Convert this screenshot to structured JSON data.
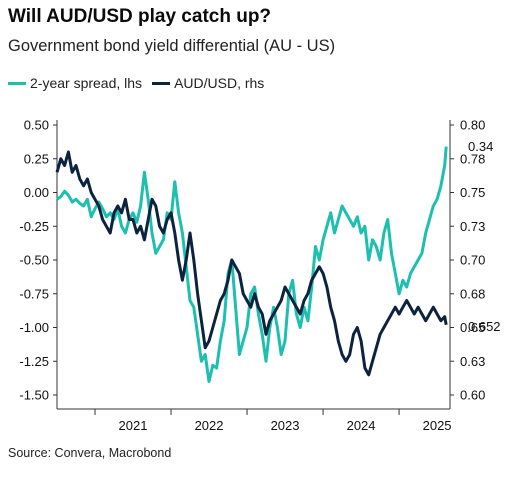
{
  "title": "Will AUD/USD play catch up?",
  "subtitle": "Government bond yield differential (AU - US)",
  "source": "Source: Convera, Macrobond",
  "colors": {
    "spread": "#1dbfaf",
    "audusd": "#0c2340",
    "axis": "#333333"
  },
  "chart_data": {
    "type": "line",
    "legend": [
      "2-year spread, lhs",
      "AUD/USD, rhs"
    ],
    "x_ticks": [
      "2021",
      "2022",
      "2023",
      "2024",
      "2025"
    ],
    "x_range": [
      2020.5,
      2025.67
    ],
    "y_left": {
      "ticks": [
        "0.50",
        "0.25",
        "0.00",
        "-0.25",
        "-0.50",
        "-0.75",
        "-1.00",
        "-1.25",
        "-1.50"
      ],
      "range": [
        -1.5,
        0.5
      ]
    },
    "y_right": {
      "ticks": [
        "0.80",
        "0.78",
        "0.75",
        "0.73",
        "0.70",
        "0.68",
        "0.65",
        "0.63",
        "0.60"
      ],
      "range": [
        0.6,
        0.8
      ]
    },
    "annotations": {
      "spread_last": "0.34",
      "audusd_last": "0.652"
    },
    "series": [
      {
        "name": "2-year spread, lhs",
        "axis": "left",
        "x": [
          2020.5,
          2020.55,
          2020.6,
          2020.65,
          2020.7,
          2020.75,
          2020.8,
          2020.85,
          2020.9,
          2020.95,
          2021.0,
          2021.05,
          2021.1,
          2021.15,
          2021.2,
          2021.25,
          2021.3,
          2021.35,
          2021.4,
          2021.45,
          2021.5,
          2021.55,
          2021.6,
          2021.65,
          2021.7,
          2021.75,
          2021.8,
          2021.85,
          2021.9,
          2021.95,
          2022.0,
          2022.05,
          2022.1,
          2022.15,
          2022.2,
          2022.25,
          2022.3,
          2022.35,
          2022.4,
          2022.45,
          2022.5,
          2022.55,
          2022.6,
          2022.65,
          2022.7,
          2022.75,
          2022.8,
          2022.85,
          2022.9,
          2022.95,
          2023.0,
          2023.05,
          2023.1,
          2023.15,
          2023.2,
          2023.25,
          2023.3,
          2023.35,
          2023.4,
          2023.45,
          2023.5,
          2023.55,
          2023.6,
          2023.65,
          2023.7,
          2023.75,
          2023.8,
          2023.85,
          2023.9,
          2023.95,
          2024.0,
          2024.05,
          2024.1,
          2024.15,
          2024.2,
          2024.25,
          2024.3,
          2024.35,
          2024.4,
          2024.45,
          2024.5,
          2024.55,
          2024.6,
          2024.65,
          2024.7,
          2024.75,
          2024.8,
          2024.85,
          2024.9,
          2024.95,
          2025.0,
          2025.05,
          2025.1,
          2025.15,
          2025.2,
          2025.25,
          2025.3,
          2025.35,
          2025.4,
          2025.45,
          2025.5,
          2025.55,
          2025.6,
          2025.62
        ],
        "y": [
          -0.05,
          -0.03,
          0.01,
          -0.02,
          -0.07,
          -0.05,
          -0.08,
          -0.1,
          -0.05,
          -0.18,
          -0.12,
          -0.07,
          -0.12,
          -0.18,
          -0.15,
          -0.2,
          -0.12,
          -0.25,
          -0.3,
          -0.2,
          -0.15,
          -0.22,
          -0.1,
          0.15,
          -0.05,
          -0.3,
          -0.45,
          -0.4,
          -0.35,
          -0.15,
          -0.2,
          0.08,
          -0.15,
          -0.3,
          -0.55,
          -0.8,
          -0.85,
          -1.05,
          -1.25,
          -1.2,
          -1.4,
          -1.28,
          -1.3,
          -1.1,
          -0.95,
          -0.6,
          -0.5,
          -0.85,
          -1.2,
          -1.1,
          -1.0,
          -0.75,
          -0.7,
          -0.9,
          -1.05,
          -1.25,
          -1.0,
          -0.85,
          -1.0,
          -1.2,
          -1.1,
          -0.75,
          -0.65,
          -0.9,
          -1.0,
          -0.85,
          -0.95,
          -0.7,
          -0.4,
          -0.5,
          -0.35,
          -0.25,
          -0.15,
          -0.3,
          -0.2,
          -0.1,
          -0.15,
          -0.2,
          -0.25,
          -0.18,
          -0.3,
          -0.25,
          -0.5,
          -0.35,
          -0.4,
          -0.5,
          -0.3,
          -0.2,
          -0.45,
          -0.6,
          -0.75,
          -0.65,
          -0.7,
          -0.6,
          -0.55,
          -0.5,
          -0.45,
          -0.3,
          -0.2,
          -0.1,
          -0.05,
          0.05,
          0.2,
          0.34
        ]
      },
      {
        "name": "AUD/USD, rhs",
        "axis": "right",
        "x": [
          2020.5,
          2020.55,
          2020.6,
          2020.65,
          2020.7,
          2020.75,
          2020.8,
          2020.85,
          2020.9,
          2020.95,
          2021.0,
          2021.05,
          2021.1,
          2021.15,
          2021.2,
          2021.25,
          2021.3,
          2021.35,
          2021.4,
          2021.45,
          2021.5,
          2021.55,
          2021.6,
          2021.65,
          2021.7,
          2021.75,
          2021.8,
          2021.85,
          2021.9,
          2021.95,
          2022.0,
          2022.05,
          2022.1,
          2022.15,
          2022.2,
          2022.25,
          2022.3,
          2022.35,
          2022.4,
          2022.45,
          2022.5,
          2022.55,
          2022.6,
          2022.65,
          2022.7,
          2022.75,
          2022.8,
          2022.85,
          2022.9,
          2022.95,
          2023.0,
          2023.05,
          2023.1,
          2023.15,
          2023.2,
          2023.25,
          2023.3,
          2023.35,
          2023.4,
          2023.45,
          2023.5,
          2023.55,
          2023.6,
          2023.65,
          2023.7,
          2023.75,
          2023.8,
          2023.85,
          2023.9,
          2023.95,
          2024.0,
          2024.05,
          2024.1,
          2024.15,
          2024.2,
          2024.25,
          2024.3,
          2024.35,
          2024.4,
          2024.45,
          2024.5,
          2024.55,
          2024.6,
          2024.65,
          2024.7,
          2024.75,
          2024.8,
          2024.85,
          2024.9,
          2024.95,
          2025.0,
          2025.05,
          2025.1,
          2025.15,
          2025.2,
          2025.25,
          2025.3,
          2025.35,
          2025.4,
          2025.45,
          2025.5,
          2025.55,
          2025.6,
          2025.62
        ],
        "y": [
          0.765,
          0.775,
          0.77,
          0.78,
          0.765,
          0.77,
          0.76,
          0.755,
          0.76,
          0.75,
          0.745,
          0.74,
          0.73,
          0.725,
          0.72,
          0.735,
          0.74,
          0.735,
          0.745,
          0.73,
          0.73,
          0.72,
          0.725,
          0.715,
          0.73,
          0.745,
          0.74,
          0.725,
          0.72,
          0.73,
          0.735,
          0.72,
          0.7,
          0.685,
          0.7,
          0.72,
          0.7,
          0.675,
          0.655,
          0.635,
          0.64,
          0.65,
          0.66,
          0.67,
          0.675,
          0.685,
          0.7,
          0.695,
          0.69,
          0.675,
          0.67,
          0.665,
          0.675,
          0.665,
          0.66,
          0.645,
          0.655,
          0.66,
          0.665,
          0.67,
          0.68,
          0.675,
          0.67,
          0.665,
          0.66,
          0.67,
          0.675,
          0.685,
          0.69,
          0.695,
          0.69,
          0.68,
          0.665,
          0.655,
          0.64,
          0.63,
          0.625,
          0.63,
          0.645,
          0.65,
          0.64,
          0.62,
          0.615,
          0.625,
          0.635,
          0.645,
          0.65,
          0.655,
          0.66,
          0.665,
          0.66,
          0.665,
          0.67,
          0.665,
          0.66,
          0.665,
          0.66,
          0.655,
          0.66,
          0.665,
          0.66,
          0.655,
          0.658,
          0.652
        ]
      }
    ]
  }
}
